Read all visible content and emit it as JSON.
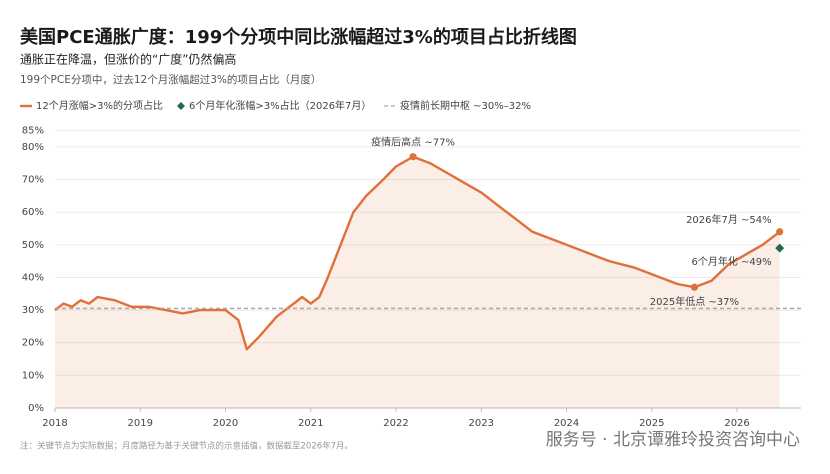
{
  "chart_data": {
    "type": "line",
    "title": "美国PCE通胀广度：199个分项中同比涨幅超过3%的项目占比折线图",
    "subtitle": "通胀正在降温，但涨价的“广度”仍然偏高",
    "description": "199个PCE分项中，过去12个月涨幅超过3%的项目占比（月度）",
    "xlim": [
      2018,
      2026.75
    ],
    "xticks": [
      2018,
      2019,
      2020,
      2021,
      2022,
      2023,
      2024,
      2025,
      2026
    ],
    "ylim": [
      0,
      85
    ],
    "yticks": [
      {
        "value": 0,
        "label": "0%"
      },
      {
        "value": 10,
        "label": "10%"
      },
      {
        "value": 20,
        "label": "20%"
      },
      {
        "value": 30,
        "label": "30%"
      },
      {
        "value": 40,
        "label": "40%"
      },
      {
        "value": 50,
        "label": "50%"
      },
      {
        "value": 60,
        "label": "60%"
      },
      {
        "value": 70,
        "label": "70%"
      },
      {
        "value": 80,
        "label": "80%"
      },
      {
        "value": 85,
        "label": "85%"
      }
    ],
    "grid": true,
    "x": [
      2018.0,
      2018.1,
      2018.2,
      2018.3,
      2018.4,
      2018.5,
      2018.7,
      2018.9,
      2019.1,
      2019.3,
      2019.5,
      2019.7,
      2019.9,
      2020.0,
      2020.15,
      2020.25,
      2020.4,
      2020.6,
      2020.8,
      2020.9,
      2021.0,
      2021.1,
      2021.2,
      2021.35,
      2021.5,
      2021.65,
      2021.85,
      2022.0,
      2022.2,
      2022.4,
      2022.6,
      2022.8,
      2023.0,
      2023.2,
      2023.4,
      2023.6,
      2023.8,
      2024.0,
      2024.3,
      2024.5,
      2024.8,
      2025.0,
      2025.3,
      2025.5,
      2025.7,
      2025.9,
      2026.1,
      2026.3,
      2026.5
    ],
    "series": [
      {
        "name": "12个月涨幅>3%的分项占比",
        "color": "#e0703a",
        "values": [
          30,
          32,
          31,
          33,
          32,
          34,
          33,
          31,
          31,
          30,
          29,
          30,
          30,
          30,
          27,
          18,
          22,
          28,
          32,
          34,
          32,
          34,
          40,
          50,
          60,
          65,
          70,
          74,
          77,
          75,
          72,
          69,
          66,
          62,
          58,
          54,
          52,
          50,
          47,
          45,
          43,
          41,
          38,
          37,
          39,
          44,
          47,
          50,
          54
        ]
      }
    ],
    "marker": {
      "name": "6个月年化涨幅>3%占比（2026年7月）",
      "color": "#1e6b4a",
      "x": 2026.5,
      "value": 49,
      "label": "6个月年化 ~49%"
    },
    "reference": {
      "name": "疫情前长期中枢 ~30%–32%",
      "value": 30.5,
      "color": "#aaaaaa"
    },
    "annotations": [
      {
        "text": "疫情后高点 ~77%",
        "x": 2022.2,
        "value": 77
      },
      {
        "text": "2025年低点 ~37%",
        "x": 2025.5,
        "value": 37
      },
      {
        "text": "2026年7月 ~54%",
        "x": 2026.5,
        "value": 54
      }
    ],
    "note": "注：关键节点为实际数据；月度路径为基于关键节点的示意插值，数据截至2026年7月。",
    "watermark": "服务号 · 北京谭雅玲投资咨询中心"
  }
}
